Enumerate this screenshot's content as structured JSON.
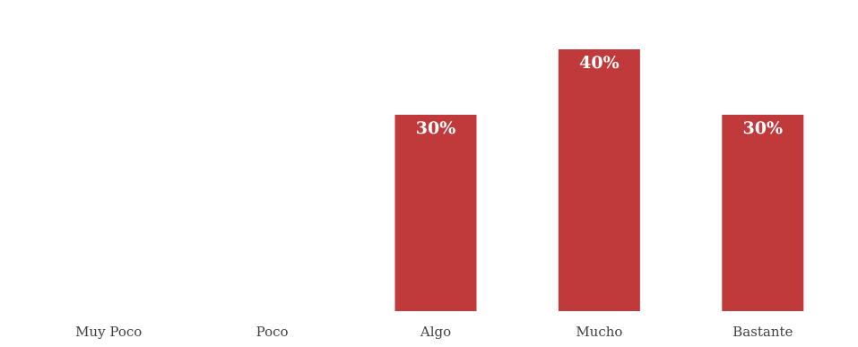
{
  "chart_data": {
    "type": "bar",
    "categories": [
      "Muy Poco",
      "Poco",
      "Algo",
      "Mucho",
      "Bastante"
    ],
    "values": [
      0,
      0,
      30,
      40,
      30
    ],
    "value_labels": [
      "",
      "",
      "30%",
      "40%",
      "30%"
    ],
    "unit": "%",
    "title": "",
    "xlabel": "",
    "ylabel": "",
    "ylim": [
      0,
      40
    ],
    "grid": false,
    "legend": "none",
    "bar_color": "#c0393b",
    "label_color": "#ffffff"
  }
}
